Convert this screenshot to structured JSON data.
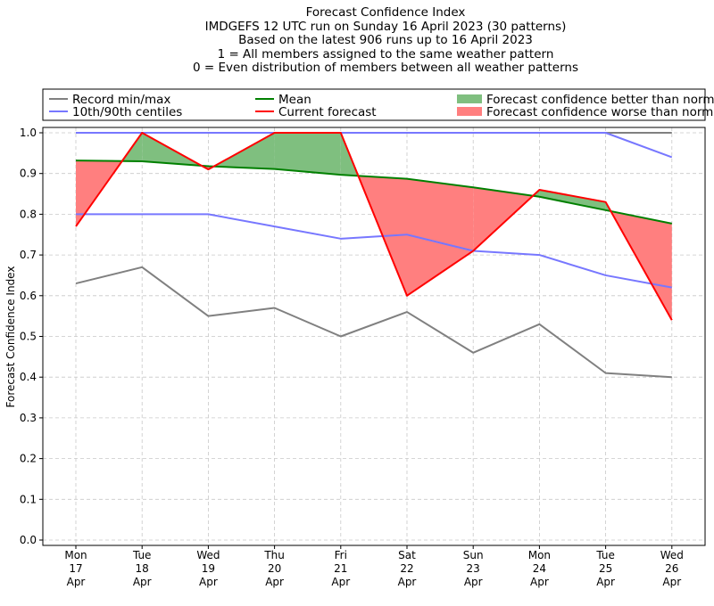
{
  "chart_data": {
    "type": "line",
    "title_lines": [
      "Forecast Confidence Index",
      "IMDGEFS 12 UTC run on Sunday 16 April 2023 (30 patterns)",
      "Based on the latest 906 runs up to 16 April 2023",
      "1 = All members assigned to the same weather pattern",
      "0 = Even distribution of members between all weather patterns"
    ],
    "ylabel": "Forecast Confidence Index",
    "xlabel": "",
    "ylim": [
      0.0,
      1.0
    ],
    "yticks": [
      "0.0",
      "0.1",
      "0.2",
      "0.3",
      "0.4",
      "0.5",
      "0.6",
      "0.7",
      "0.8",
      "0.9",
      "1.0"
    ],
    "grid": true,
    "legend_position": "top (above plot)",
    "categories": [
      [
        "Mon",
        "17",
        "Apr"
      ],
      [
        "Tue",
        "18",
        "Apr"
      ],
      [
        "Wed",
        "19",
        "Apr"
      ],
      [
        "Thu",
        "20",
        "Apr"
      ],
      [
        "Fri",
        "21",
        "Apr"
      ],
      [
        "Sat",
        "22",
        "Apr"
      ],
      [
        "Sun",
        "23",
        "Apr"
      ],
      [
        "Mon",
        "24",
        "Apr"
      ],
      [
        "Tue",
        "25",
        "Apr"
      ],
      [
        "Wed",
        "26",
        "Apr"
      ]
    ],
    "series": [
      {
        "name": "Record min/max",
        "color": "#808080",
        "role": "max",
        "values": [
          1.0,
          1.0,
          1.0,
          1.0,
          1.0,
          1.0,
          1.0,
          1.0,
          1.0,
          1.0
        ]
      },
      {
        "name": "Record min/max",
        "color": "#808080",
        "role": "min",
        "values": [
          0.63,
          0.67,
          0.55,
          0.57,
          0.5,
          0.56,
          0.46,
          0.53,
          0.41,
          0.4
        ]
      },
      {
        "name": "10th/90th centiles",
        "color": "#7777ff",
        "role": "p90",
        "values": [
          1.0,
          1.0,
          1.0,
          1.0,
          1.0,
          1.0,
          1.0,
          1.0,
          1.0,
          0.94
        ]
      },
      {
        "name": "10th/90th centiles",
        "color": "#7777ff",
        "role": "p10",
        "values": [
          0.8,
          0.8,
          0.8,
          0.77,
          0.74,
          0.75,
          0.71,
          0.7,
          0.65,
          0.62
        ]
      },
      {
        "name": "Mean",
        "color": "#008000",
        "role": "mean",
        "values": [
          0.932,
          0.93,
          0.918,
          0.911,
          0.897,
          0.887,
          0.866,
          0.843,
          0.81,
          0.777
        ]
      },
      {
        "name": "Current forecast",
        "color": "#ff0000",
        "role": "current",
        "values": [
          0.77,
          1.0,
          0.91,
          1.0,
          1.0,
          0.6,
          0.71,
          0.86,
          0.83,
          0.54
        ]
      }
    ],
    "fills": {
      "better": {
        "name": "Forecast confidence better than normal",
        "color": "#7fbf7f"
      },
      "worse": {
        "name": "Forecast confidence worse than normal",
        "color": "#ff7f7f"
      }
    },
    "legend": [
      {
        "label": "Record min/max",
        "color": "#808080",
        "kind": "line"
      },
      {
        "label": "10th/90th centiles",
        "color": "#7777ff",
        "kind": "line"
      },
      {
        "label": "Mean",
        "color": "#008000",
        "kind": "line"
      },
      {
        "label": "Current forecast",
        "color": "#ff0000",
        "kind": "line"
      },
      {
        "label": "Forecast confidence better than normal",
        "color": "#7fbf7f",
        "kind": "patch"
      },
      {
        "label": "Forecast confidence worse than normal",
        "color": "#ff7f7f",
        "kind": "patch"
      }
    ]
  }
}
